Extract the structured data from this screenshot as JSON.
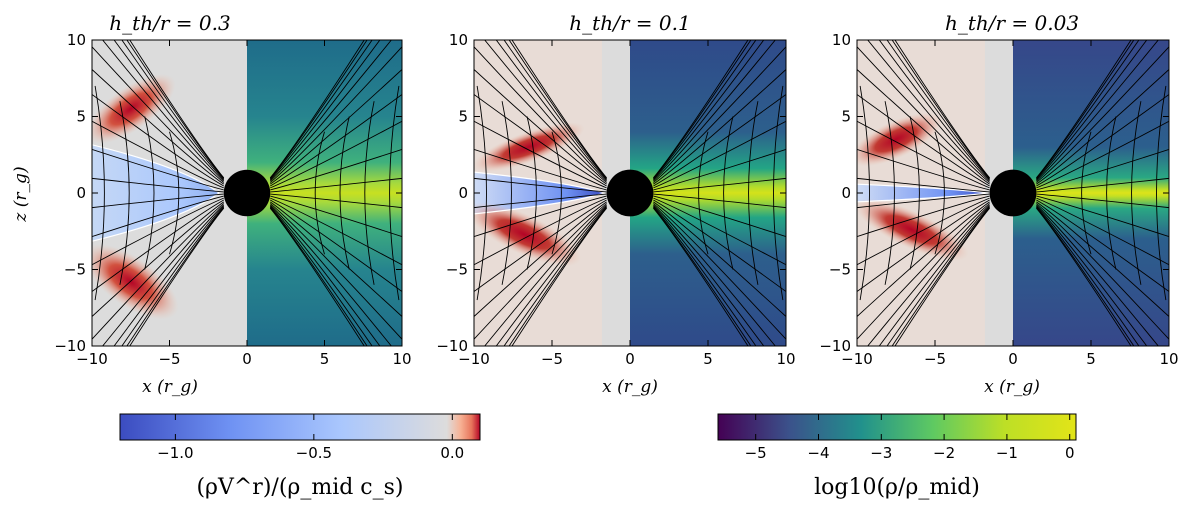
{
  "chart_data": {
    "type": "heatmap",
    "x_domain": [
      -10,
      10
    ],
    "y_domain": [
      -10,
      10
    ],
    "x_ticks": [
      -10,
      -5,
      0,
      5,
      10
    ],
    "y_ticks": [
      -10,
      -5,
      0,
      5,
      10
    ],
    "x_tick_labels": [
      "−10",
      "−5",
      "0",
      "5",
      "10"
    ],
    "y_tick_labels": [
      "−10",
      "−5",
      "0",
      "5",
      "10"
    ],
    "xlabel": "x (r_g)",
    "ylabel": "z (r_g)",
    "black_hole_radius": 1.5,
    "panels": [
      {
        "title": "h_th/r = 0.3",
        "h_over_r": 0.3,
        "left_field": "(ρV^r)/(ρ_mid c_s)",
        "right_field": "log10(ρ/ρ_mid)"
      },
      {
        "title": "h_th/r = 0.1",
        "h_over_r": 0.1,
        "left_field": "(ρV^r)/(ρ_mid c_s)",
        "right_field": "log10(ρ/ρ_mid)"
      },
      {
        "title": "h_th/r = 0.03",
        "h_over_r": 0.03,
        "left_field": "(ρV^r)/(ρ_mid c_s)",
        "right_field": "log10(ρ/ρ_mid)"
      }
    ],
    "colorbars": [
      {
        "label": "(ρV^r)/(ρ_mid c_s)",
        "colormap": "coolwarm-like",
        "range": [
          -1.2,
          0.1
        ],
        "ticks": [
          -1.0,
          -0.5,
          0.0
        ],
        "tick_labels": [
          "−1.0",
          "−0.5",
          "0.0"
        ]
      },
      {
        "label": "log10(ρ/ρ_mid)",
        "colormap": "viridis",
        "range": [
          -5.6,
          0.1
        ],
        "ticks": [
          -5,
          -4,
          -3,
          -2,
          -1,
          0
        ],
        "tick_labels": [
          "−5",
          "−4",
          "−3",
          "−2",
          "−1",
          "0"
        ]
      }
    ]
  },
  "colors": {
    "coolwarm": [
      "#3b4cc0",
      "#6f92f3",
      "#aac7fd",
      "#dddcdc",
      "#f7b194",
      "#e7745b",
      "#b40426"
    ],
    "viridis": [
      "#440154",
      "#3b528b",
      "#21918c",
      "#5ec962",
      "#bddf26",
      "#e2e418"
    ],
    "field_lines": "#000000",
    "separatrix": "#ffffff"
  }
}
